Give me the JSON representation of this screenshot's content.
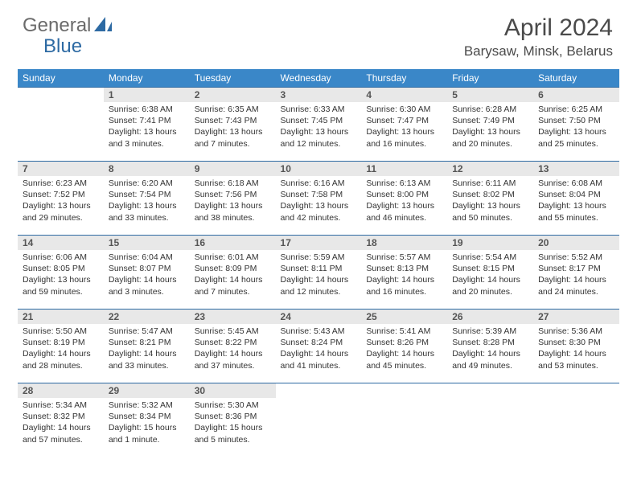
{
  "logo": {
    "text1": "General",
    "text2": "Blue"
  },
  "title": "April 2024",
  "location": "Barysaw, Minsk, Belarus",
  "colors": {
    "header_bg": "#3a87c8",
    "header_text": "#ffffff",
    "daynum_bg": "#e8e8e8",
    "row_border": "#2d6aa3",
    "logo_gray": "#6b6b6b",
    "logo_blue": "#2d6aa3"
  },
  "weekdays": [
    "Sunday",
    "Monday",
    "Tuesday",
    "Wednesday",
    "Thursday",
    "Friday",
    "Saturday"
  ],
  "weeks": [
    [
      null,
      {
        "n": "1",
        "sr": "Sunrise: 6:38 AM",
        "ss": "Sunset: 7:41 PM",
        "dl": "Daylight: 13 hours and 3 minutes."
      },
      {
        "n": "2",
        "sr": "Sunrise: 6:35 AM",
        "ss": "Sunset: 7:43 PM",
        "dl": "Daylight: 13 hours and 7 minutes."
      },
      {
        "n": "3",
        "sr": "Sunrise: 6:33 AM",
        "ss": "Sunset: 7:45 PM",
        "dl": "Daylight: 13 hours and 12 minutes."
      },
      {
        "n": "4",
        "sr": "Sunrise: 6:30 AM",
        "ss": "Sunset: 7:47 PM",
        "dl": "Daylight: 13 hours and 16 minutes."
      },
      {
        "n": "5",
        "sr": "Sunrise: 6:28 AM",
        "ss": "Sunset: 7:49 PM",
        "dl": "Daylight: 13 hours and 20 minutes."
      },
      {
        "n": "6",
        "sr": "Sunrise: 6:25 AM",
        "ss": "Sunset: 7:50 PM",
        "dl": "Daylight: 13 hours and 25 minutes."
      }
    ],
    [
      {
        "n": "7",
        "sr": "Sunrise: 6:23 AM",
        "ss": "Sunset: 7:52 PM",
        "dl": "Daylight: 13 hours and 29 minutes."
      },
      {
        "n": "8",
        "sr": "Sunrise: 6:20 AM",
        "ss": "Sunset: 7:54 PM",
        "dl": "Daylight: 13 hours and 33 minutes."
      },
      {
        "n": "9",
        "sr": "Sunrise: 6:18 AM",
        "ss": "Sunset: 7:56 PM",
        "dl": "Daylight: 13 hours and 38 minutes."
      },
      {
        "n": "10",
        "sr": "Sunrise: 6:16 AM",
        "ss": "Sunset: 7:58 PM",
        "dl": "Daylight: 13 hours and 42 minutes."
      },
      {
        "n": "11",
        "sr": "Sunrise: 6:13 AM",
        "ss": "Sunset: 8:00 PM",
        "dl": "Daylight: 13 hours and 46 minutes."
      },
      {
        "n": "12",
        "sr": "Sunrise: 6:11 AM",
        "ss": "Sunset: 8:02 PM",
        "dl": "Daylight: 13 hours and 50 minutes."
      },
      {
        "n": "13",
        "sr": "Sunrise: 6:08 AM",
        "ss": "Sunset: 8:04 PM",
        "dl": "Daylight: 13 hours and 55 minutes."
      }
    ],
    [
      {
        "n": "14",
        "sr": "Sunrise: 6:06 AM",
        "ss": "Sunset: 8:05 PM",
        "dl": "Daylight: 13 hours and 59 minutes."
      },
      {
        "n": "15",
        "sr": "Sunrise: 6:04 AM",
        "ss": "Sunset: 8:07 PM",
        "dl": "Daylight: 14 hours and 3 minutes."
      },
      {
        "n": "16",
        "sr": "Sunrise: 6:01 AM",
        "ss": "Sunset: 8:09 PM",
        "dl": "Daylight: 14 hours and 7 minutes."
      },
      {
        "n": "17",
        "sr": "Sunrise: 5:59 AM",
        "ss": "Sunset: 8:11 PM",
        "dl": "Daylight: 14 hours and 12 minutes."
      },
      {
        "n": "18",
        "sr": "Sunrise: 5:57 AM",
        "ss": "Sunset: 8:13 PM",
        "dl": "Daylight: 14 hours and 16 minutes."
      },
      {
        "n": "19",
        "sr": "Sunrise: 5:54 AM",
        "ss": "Sunset: 8:15 PM",
        "dl": "Daylight: 14 hours and 20 minutes."
      },
      {
        "n": "20",
        "sr": "Sunrise: 5:52 AM",
        "ss": "Sunset: 8:17 PM",
        "dl": "Daylight: 14 hours and 24 minutes."
      }
    ],
    [
      {
        "n": "21",
        "sr": "Sunrise: 5:50 AM",
        "ss": "Sunset: 8:19 PM",
        "dl": "Daylight: 14 hours and 28 minutes."
      },
      {
        "n": "22",
        "sr": "Sunrise: 5:47 AM",
        "ss": "Sunset: 8:21 PM",
        "dl": "Daylight: 14 hours and 33 minutes."
      },
      {
        "n": "23",
        "sr": "Sunrise: 5:45 AM",
        "ss": "Sunset: 8:22 PM",
        "dl": "Daylight: 14 hours and 37 minutes."
      },
      {
        "n": "24",
        "sr": "Sunrise: 5:43 AM",
        "ss": "Sunset: 8:24 PM",
        "dl": "Daylight: 14 hours and 41 minutes."
      },
      {
        "n": "25",
        "sr": "Sunrise: 5:41 AM",
        "ss": "Sunset: 8:26 PM",
        "dl": "Daylight: 14 hours and 45 minutes."
      },
      {
        "n": "26",
        "sr": "Sunrise: 5:39 AM",
        "ss": "Sunset: 8:28 PM",
        "dl": "Daylight: 14 hours and 49 minutes."
      },
      {
        "n": "27",
        "sr": "Sunrise: 5:36 AM",
        "ss": "Sunset: 8:30 PM",
        "dl": "Daylight: 14 hours and 53 minutes."
      }
    ],
    [
      {
        "n": "28",
        "sr": "Sunrise: 5:34 AM",
        "ss": "Sunset: 8:32 PM",
        "dl": "Daylight: 14 hours and 57 minutes."
      },
      {
        "n": "29",
        "sr": "Sunrise: 5:32 AM",
        "ss": "Sunset: 8:34 PM",
        "dl": "Daylight: 15 hours and 1 minute."
      },
      {
        "n": "30",
        "sr": "Sunrise: 5:30 AM",
        "ss": "Sunset: 8:36 PM",
        "dl": "Daylight: 15 hours and 5 minutes."
      },
      null,
      null,
      null,
      null
    ]
  ]
}
